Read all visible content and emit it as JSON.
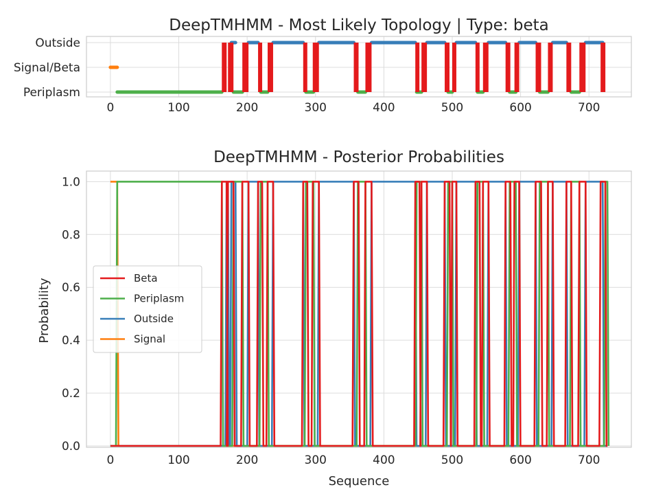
{
  "chart_data": [
    {
      "type": "line",
      "title": "DeepTMHMM - Most Likely Topology | Type: beta",
      "xlim": [
        -35,
        762
      ],
      "x_ticks": [
        0,
        100,
        200,
        300,
        400,
        500,
        600,
        700
      ],
      "y_ticks": [
        "Periplasm",
        "Signal/Beta",
        "Outside"
      ],
      "series": [
        {
          "name": "Signal",
          "color": "#ff7f0e",
          "level": "Signal/Beta",
          "segments": [
            [
              0,
              10
            ]
          ]
        },
        {
          "name": "Periplasm",
          "color": "#4daf4a",
          "level": "Periplasm",
          "segments": [
            [
              10,
              163
            ],
            [
              180,
              193
            ],
            [
              220,
              230
            ],
            [
              286,
              297
            ],
            [
              362,
              373
            ],
            [
              448,
              455
            ],
            [
              494,
              500
            ],
            [
              537,
              545
            ],
            [
              584,
              593
            ],
            [
              628,
              640
            ],
            [
              674,
              686
            ]
          ]
        },
        {
          "name": "Outside",
          "color": "#377eb8",
          "level": "Outside",
          "segments": [
            [
              177,
              183
            ],
            [
              202,
              216
            ],
            [
              238,
              282
            ],
            [
              305,
              356
            ],
            [
              382,
              446
            ],
            [
              463,
              489
            ],
            [
              506,
              534
            ],
            [
              553,
              578
            ],
            [
              598,
              622
            ],
            [
              647,
              667
            ],
            [
              695,
              720
            ]
          ]
        },
        {
          "name": "Beta",
          "color": "#e41a1c",
          "level": "Beta",
          "segments": [
            [
              163,
              170
            ],
            [
              172,
              180
            ],
            [
              193,
              202
            ],
            [
              216,
              222
            ],
            [
              230,
              238
            ],
            [
              282,
              288
            ],
            [
              296,
              305
            ],
            [
              356,
              363
            ],
            [
              373,
              382
            ],
            [
              446,
              452
            ],
            [
              455,
              463
            ],
            [
              489,
              496
            ],
            [
              500,
              506
            ],
            [
              534,
              540
            ],
            [
              545,
              553
            ],
            [
              578,
              585
            ],
            [
              591,
              598
            ],
            [
              622,
              630
            ],
            [
              640,
              647
            ],
            [
              667,
              674
            ],
            [
              686,
              695
            ],
            [
              717,
              724
            ]
          ]
        }
      ]
    },
    {
      "type": "line",
      "title": "DeepTMHMM - Posterior Probabilities",
      "xlabel": "Sequence",
      "ylabel": "Probability",
      "xlim": [
        -35,
        762
      ],
      "ylim": [
        0.0,
        1.04
      ],
      "x_ticks": [
        "0",
        "100",
        "200",
        "300",
        "400",
        "500",
        "600",
        "700"
      ],
      "y_ticks": [
        "0.0",
        "0.2",
        "0.4",
        "0.6",
        "0.8",
        "1.0"
      ],
      "legend": {
        "location": "center-left",
        "entries": [
          "Beta",
          "Periplasm",
          "Outside",
          "Signal"
        ]
      },
      "series": [
        {
          "name": "Beta",
          "color": "#e41a1c",
          "high_segments": [
            [
              163,
              170
            ],
            [
              172,
              180
            ],
            [
              193,
              202
            ],
            [
              216,
              222
            ],
            [
              230,
              238
            ],
            [
              282,
              288
            ],
            [
              296,
              305
            ],
            [
              356,
              363
            ],
            [
              373,
              382
            ],
            [
              446,
              452
            ],
            [
              455,
              463
            ],
            [
              489,
              496
            ],
            [
              500,
              506
            ],
            [
              534,
              540
            ],
            [
              545,
              553
            ],
            [
              578,
              585
            ],
            [
              591,
              598
            ],
            [
              622,
              630
            ],
            [
              640,
              647
            ],
            [
              667,
              674
            ],
            [
              686,
              695
            ],
            [
              717,
              724
            ]
          ]
        },
        {
          "name": "Periplasm",
          "color": "#4daf4a",
          "high_segments": [
            [
              10,
              163
            ],
            [
              180,
              193
            ],
            [
              220,
              230
            ],
            [
              286,
              297
            ],
            [
              362,
              373
            ],
            [
              448,
              455
            ],
            [
              494,
              500
            ],
            [
              537,
              545
            ],
            [
              584,
              593
            ],
            [
              628,
              640
            ],
            [
              674,
              686
            ],
            [
              724,
              727
            ]
          ]
        },
        {
          "name": "Outside",
          "color": "#377eb8",
          "high_segments": [
            [
              170,
              172
            ],
            [
              177,
              183
            ],
            [
              202,
              216
            ],
            [
              238,
              282
            ],
            [
              305,
              356
            ],
            [
              382,
              446
            ],
            [
              463,
              489
            ],
            [
              506,
              534
            ],
            [
              553,
              578
            ],
            [
              598,
              622
            ],
            [
              647,
              667
            ],
            [
              695,
              720
            ]
          ]
        },
        {
          "name": "Signal",
          "color": "#ff7f0e",
          "high_segments": [
            [
              0,
              10
            ]
          ]
        }
      ]
    }
  ]
}
